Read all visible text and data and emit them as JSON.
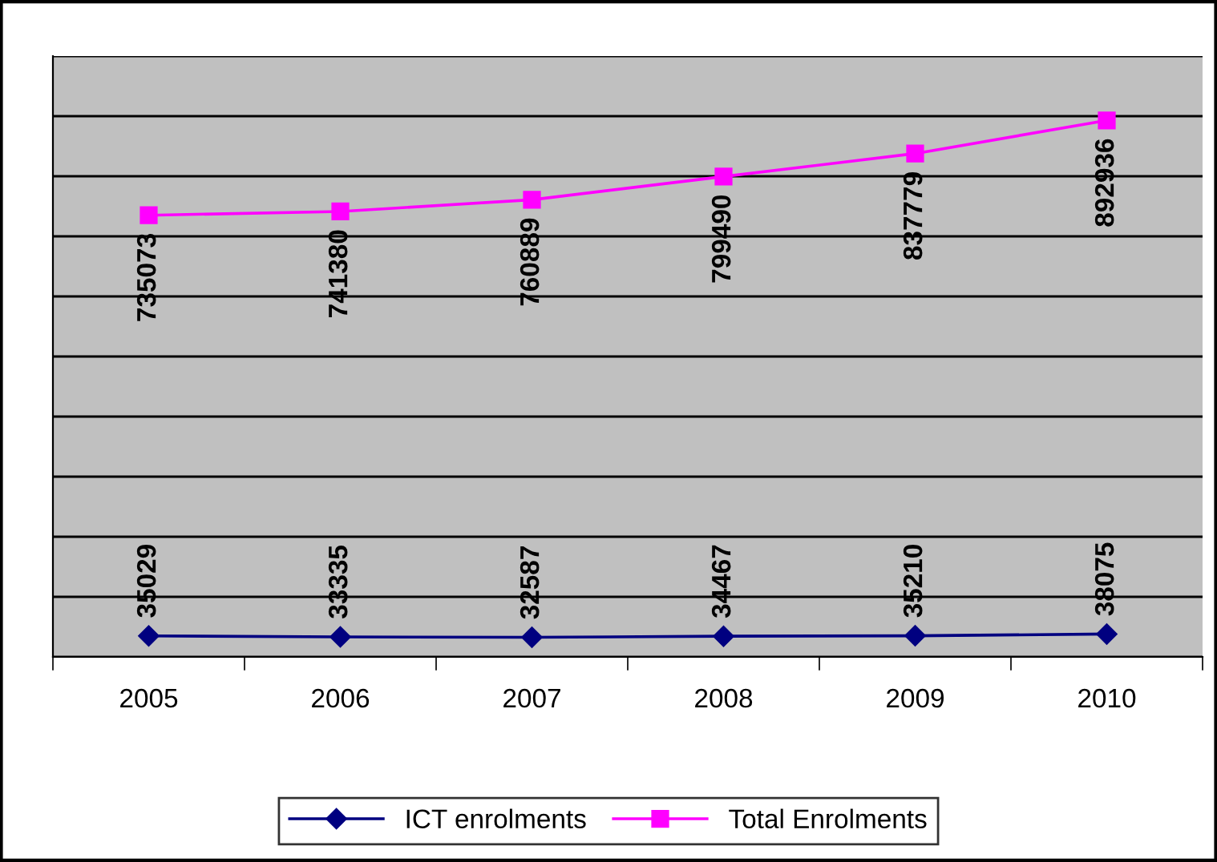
{
  "chart_data": {
    "type": "line",
    "categories": [
      "2005",
      "2006",
      "2007",
      "2008",
      "2009",
      "2010"
    ],
    "series": [
      {
        "name": "ICT enrolments",
        "color": "#000080",
        "marker": "diamond",
        "values": [
          35029,
          33335,
          32587,
          34467,
          35210,
          38075
        ]
      },
      {
        "name": "Total Enrolments",
        "color": "#ff00ff",
        "marker": "square",
        "values": [
          735073,
          741380,
          760889,
          799490,
          837779,
          892936
        ]
      }
    ],
    "ylim": [
      0,
      1000000
    ],
    "yticks": [
      {
        "value": 0,
        "label": null
      },
      {
        "value": 100000,
        "label": null
      },
      {
        "value": 200000,
        "label": null
      },
      {
        "value": 300000,
        "label": null
      },
      {
        "value": 400000,
        "label": null
      },
      {
        "value": 500000,
        "label": null
      },
      {
        "value": 600000,
        "label": null
      },
      {
        "value": 700000,
        "label": null
      },
      {
        "value": 800000,
        "label": null
      },
      {
        "value": 900000,
        "label": null
      },
      {
        "value": 1000000,
        "label": null
      }
    ],
    "tick_labels": "x",
    "grid": "y",
    "legend": "bottom",
    "data_labels": true
  }
}
